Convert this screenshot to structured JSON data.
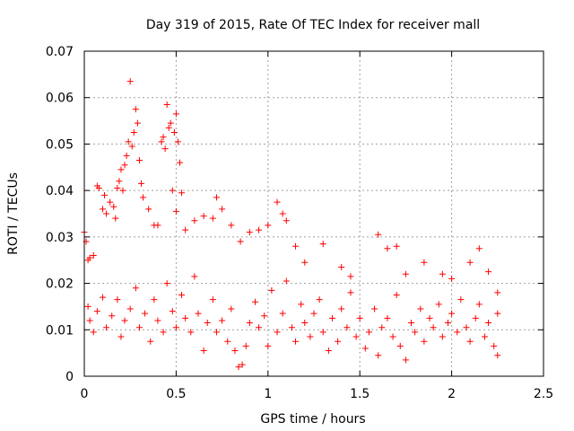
{
  "chart_data": {
    "type": "scatter",
    "title": "Day 319 of 2015, Rate Of TEC Index for receiver mall",
    "xlabel": "GPS time / hours",
    "ylabel": "ROTI / TECUs",
    "xlim": [
      0,
      2.5
    ],
    "ylim": [
      0,
      0.07
    ],
    "xticks": [
      0,
      0.5,
      1,
      1.5,
      2,
      2.5
    ],
    "xtick_labels": [
      "0",
      "0.5",
      "1",
      "1.5",
      "2",
      "2.5"
    ],
    "yticks": [
      0,
      0.01,
      0.02,
      0.03,
      0.04,
      0.05,
      0.06,
      0.07
    ],
    "ytick_labels": [
      "0",
      "0.01",
      "0.02",
      "0.03",
      "0.04",
      "0.05",
      "0.06",
      "0.07"
    ],
    "grid": true,
    "marker": "plus",
    "color": "#ff0000",
    "series": [
      {
        "points": [
          [
            0.0,
            0.031
          ],
          [
            0.01,
            0.029
          ],
          [
            0.02,
            0.025
          ],
          [
            0.03,
            0.0255
          ],
          [
            0.05,
            0.026
          ],
          [
            0.07,
            0.041
          ],
          [
            0.08,
            0.0405
          ],
          [
            0.1,
            0.036
          ],
          [
            0.11,
            0.039
          ],
          [
            0.12,
            0.035
          ],
          [
            0.14,
            0.0375
          ],
          [
            0.16,
            0.0365
          ],
          [
            0.17,
            0.034
          ],
          [
            0.18,
            0.0405
          ],
          [
            0.19,
            0.042
          ],
          [
            0.2,
            0.0445
          ],
          [
            0.21,
            0.04
          ],
          [
            0.22,
            0.0455
          ],
          [
            0.23,
            0.0475
          ],
          [
            0.24,
            0.0505
          ],
          [
            0.25,
            0.0635
          ],
          [
            0.26,
            0.0495
          ],
          [
            0.27,
            0.0525
          ],
          [
            0.28,
            0.0575
          ],
          [
            0.29,
            0.0545
          ],
          [
            0.3,
            0.0465
          ],
          [
            0.31,
            0.0415
          ],
          [
            0.32,
            0.0385
          ],
          [
            0.35,
            0.036
          ],
          [
            0.38,
            0.0325
          ],
          [
            0.4,
            0.0325
          ],
          [
            0.42,
            0.0505
          ],
          [
            0.43,
            0.0515
          ],
          [
            0.44,
            0.049
          ],
          [
            0.45,
            0.0585
          ],
          [
            0.46,
            0.0535
          ],
          [
            0.47,
            0.0545
          ],
          [
            0.48,
            0.04
          ],
          [
            0.49,
            0.0525
          ],
          [
            0.5,
            0.0565
          ],
          [
            0.51,
            0.0505
          ],
          [
            0.52,
            0.046
          ],
          [
            0.53,
            0.0395
          ],
          [
            0.5,
            0.0355
          ],
          [
            0.55,
            0.0315
          ],
          [
            0.6,
            0.0335
          ],
          [
            0.65,
            0.0345
          ],
          [
            0.7,
            0.034
          ],
          [
            0.72,
            0.0385
          ],
          [
            0.75,
            0.036
          ],
          [
            0.8,
            0.0325
          ],
          [
            0.85,
            0.029
          ],
          [
            0.9,
            0.031
          ],
          [
            0.95,
            0.0315
          ],
          [
            1.0,
            0.0325
          ],
          [
            1.05,
            0.0375
          ],
          [
            1.08,
            0.035
          ],
          [
            1.1,
            0.0335
          ],
          [
            1.15,
            0.028
          ],
          [
            1.2,
            0.0245
          ],
          [
            1.3,
            0.0285
          ],
          [
            1.4,
            0.0235
          ],
          [
            1.45,
            0.0215
          ],
          [
            1.6,
            0.0305
          ],
          [
            1.65,
            0.0275
          ],
          [
            1.7,
            0.028
          ],
          [
            1.75,
            0.022
          ],
          [
            1.85,
            0.0245
          ],
          [
            1.95,
            0.022
          ],
          [
            2.0,
            0.021
          ],
          [
            2.1,
            0.0245
          ],
          [
            2.15,
            0.0275
          ],
          [
            2.2,
            0.0225
          ],
          [
            2.25,
            0.018
          ],
          [
            0.02,
            0.015
          ],
          [
            0.03,
            0.012
          ],
          [
            0.05,
            0.0095
          ],
          [
            0.07,
            0.014
          ],
          [
            0.1,
            0.017
          ],
          [
            0.12,
            0.0105
          ],
          [
            0.15,
            0.013
          ],
          [
            0.18,
            0.0165
          ],
          [
            0.2,
            0.0085
          ],
          [
            0.22,
            0.012
          ],
          [
            0.25,
            0.0145
          ],
          [
            0.28,
            0.019
          ],
          [
            0.3,
            0.0105
          ],
          [
            0.33,
            0.0135
          ],
          [
            0.36,
            0.0075
          ],
          [
            0.38,
            0.0165
          ],
          [
            0.4,
            0.012
          ],
          [
            0.43,
            0.0095
          ],
          [
            0.45,
            0.02
          ],
          [
            0.48,
            0.014
          ],
          [
            0.5,
            0.0105
          ],
          [
            0.53,
            0.0175
          ],
          [
            0.55,
            0.0125
          ],
          [
            0.58,
            0.0095
          ],
          [
            0.6,
            0.0215
          ],
          [
            0.62,
            0.0135
          ],
          [
            0.65,
            0.0055
          ],
          [
            0.67,
            0.0115
          ],
          [
            0.7,
            0.0165
          ],
          [
            0.72,
            0.0095
          ],
          [
            0.75,
            0.012
          ],
          [
            0.78,
            0.0075
          ],
          [
            0.8,
            0.0145
          ],
          [
            0.82,
            0.0055
          ],
          [
            0.84,
            0.002
          ],
          [
            0.86,
            0.0025
          ],
          [
            0.88,
            0.0065
          ],
          [
            0.9,
            0.0115
          ],
          [
            0.93,
            0.016
          ],
          [
            0.95,
            0.0105
          ],
          [
            0.98,
            0.013
          ],
          [
            1.0,
            0.0065
          ],
          [
            1.02,
            0.0185
          ],
          [
            1.05,
            0.0095
          ],
          [
            1.08,
            0.0135
          ],
          [
            1.1,
            0.0205
          ],
          [
            1.13,
            0.0105
          ],
          [
            1.15,
            0.0075
          ],
          [
            1.18,
            0.0155
          ],
          [
            1.2,
            0.0115
          ],
          [
            1.23,
            0.0085
          ],
          [
            1.25,
            0.0135
          ],
          [
            1.28,
            0.0165
          ],
          [
            1.3,
            0.0095
          ],
          [
            1.33,
            0.0055
          ],
          [
            1.35,
            0.0125
          ],
          [
            1.38,
            0.0075
          ],
          [
            1.4,
            0.0145
          ],
          [
            1.43,
            0.0105
          ],
          [
            1.45,
            0.018
          ],
          [
            1.48,
            0.0085
          ],
          [
            1.5,
            0.0125
          ],
          [
            1.53,
            0.006
          ],
          [
            1.55,
            0.0095
          ],
          [
            1.58,
            0.0145
          ],
          [
            1.6,
            0.0045
          ],
          [
            1.62,
            0.0105
          ],
          [
            1.65,
            0.0125
          ],
          [
            1.68,
            0.0085
          ],
          [
            1.7,
            0.0175
          ],
          [
            1.72,
            0.0065
          ],
          [
            1.75,
            0.0035
          ],
          [
            1.78,
            0.0115
          ],
          [
            1.8,
            0.0095
          ],
          [
            1.83,
            0.0145
          ],
          [
            1.85,
            0.0075
          ],
          [
            1.88,
            0.0125
          ],
          [
            1.9,
            0.0105
          ],
          [
            1.93,
            0.0155
          ],
          [
            1.95,
            0.0085
          ],
          [
            1.98,
            0.0115
          ],
          [
            2.0,
            0.0135
          ],
          [
            2.03,
            0.0095
          ],
          [
            2.05,
            0.0165
          ],
          [
            2.08,
            0.0105
          ],
          [
            2.1,
            0.0075
          ],
          [
            2.13,
            0.0125
          ],
          [
            2.15,
            0.0155
          ],
          [
            2.18,
            0.0085
          ],
          [
            2.2,
            0.0115
          ],
          [
            2.23,
            0.0065
          ],
          [
            2.25,
            0.0135
          ],
          [
            2.25,
            0.0045
          ]
        ]
      }
    ]
  }
}
